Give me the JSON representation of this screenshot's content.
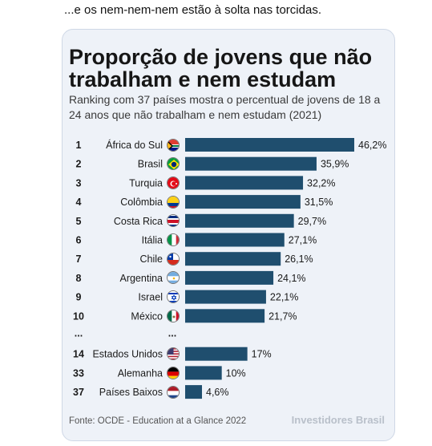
{
  "post": {
    "text": "...e os nem-nem-nem estão à solta nas torcidas."
  },
  "card": {
    "title": "Proporção de jovens que não trabalham e nem estudam",
    "subtitle": "Ranking com 37 países mostra o percentual de jovens de 18 a 24 anos que não trabalham e nem estudam (2021)",
    "source": "Fonte: OCDE - Education at a Glance 2022",
    "brand": "Investidores Brasil",
    "ellipsis": "..."
  },
  "colors": {
    "bar": "#1f4e6e",
    "card_bg": "#eef2f8",
    "ellipsis_color": "#1a1a1a"
  },
  "chart_data": {
    "type": "bar",
    "orientation": "horizontal",
    "title": "Proporção de jovens que não trabalham e nem estudam",
    "subtitle": "Ranking com 37 países mostra o percentual de jovens de 18 a 24 anos que não trabalham e nem estudam (2021)",
    "ranks": [
      "1",
      "2",
      "3",
      "4",
      "5",
      "6",
      "7",
      "8",
      "9",
      "10",
      "14",
      "33",
      "37"
    ],
    "categories": [
      "África do Sul",
      "Brasil",
      "Turquia",
      "Colômbia",
      "Costa Rica",
      "Itália",
      "Chile",
      "Argentina",
      "Israel",
      "México",
      "Estados Unidos",
      "Alemanha",
      "Países Baixos"
    ],
    "values": [
      46.2,
      35.9,
      32.2,
      31.5,
      29.7,
      27.1,
      26.1,
      24.1,
      22.1,
      21.7,
      17,
      10,
      4.6
    ],
    "value_labels": [
      "46,2%",
      "35,9%",
      "32,2%",
      "31,5%",
      "29,7%",
      "27,1%",
      "26,1%",
      "24,1%",
      "22,1%",
      "21,7%",
      "17%",
      "10%",
      "4,6%"
    ],
    "flags": [
      "za-flag-icon",
      "br-flag-icon",
      "tr-flag-icon",
      "co-flag-icon",
      "cr-flag-icon",
      "it-flag-icon",
      "cl-flag-icon",
      "ar-flag-icon",
      "il-flag-icon",
      "mx-flag-icon",
      "us-flag-icon",
      "de-flag-icon",
      "nl-flag-icon"
    ],
    "gap_after_index": 9,
    "xlim": [
      0,
      46.2
    ],
    "grid": false,
    "legend": "none"
  }
}
